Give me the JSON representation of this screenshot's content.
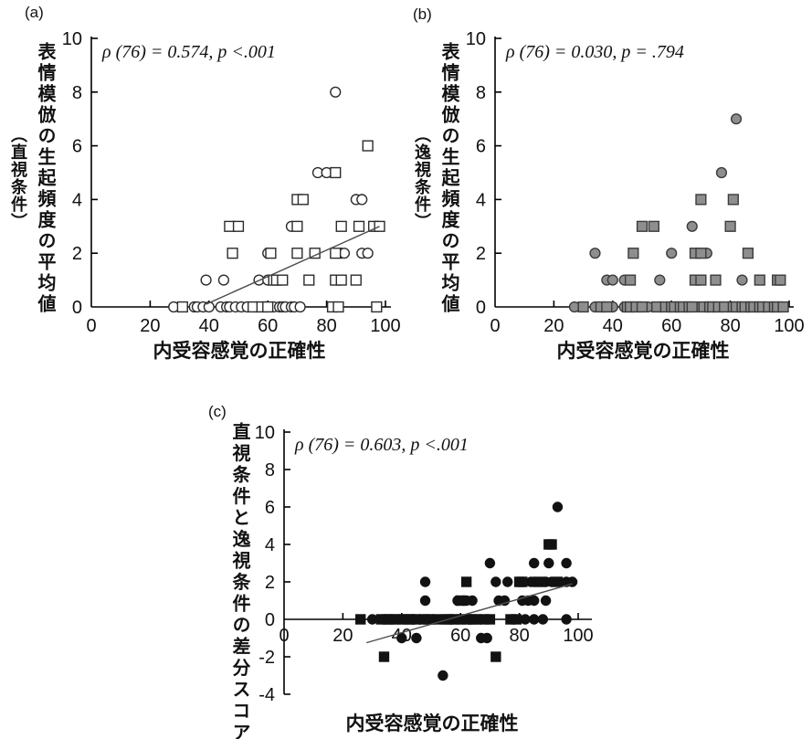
{
  "panels": [
    {
      "id": "a",
      "label": "(a)",
      "y_title": "表情模倣の生起頻度の平均値",
      "y_title_paren": "（直視条件）",
      "x_title": "内受容感覚の正確性",
      "annotation": "ρ (76) = 0.574, p <.001"
    },
    {
      "id": "b",
      "label": "(b)",
      "y_title": "表情模倣の生起頻度の平均値",
      "y_title_paren": "（逸視条件）",
      "x_title": "内受容感覚の正確性",
      "annotation": "ρ (76) = 0.030, p = .794"
    },
    {
      "id": "c",
      "label": "(c)",
      "y_title": "直視条件と逸視条件の差分スコア",
      "y_title_paren": "",
      "x_title": "内受容感覚の正確性",
      "annotation": "ρ (76) = 0.603, p <.001"
    }
  ],
  "chart_data": [
    {
      "type": "scatter",
      "panel": "a",
      "xlabel": "内受容感覚の正確性",
      "ylabel": "表情模倣の生起頻度の平均値（直視条件）",
      "annotation": "ρ (76) = 0.574, p <.001",
      "stats": {
        "rho": 0.574,
        "df": 76,
        "p": "<.001"
      },
      "xlim": [
        0,
        100
      ],
      "ylim": [
        0,
        10
      ],
      "xticks": [
        0,
        20,
        40,
        60,
        80,
        100
      ],
      "yticks": [
        0,
        2,
        4,
        6,
        8,
        10
      ],
      "grid": false,
      "series": [
        {
          "name": "open-circles",
          "marker": "circle",
          "fill": "#ffffff",
          "stroke": "#2b2b2b",
          "size": 10.8,
          "points": [
            [
              83,
              8
            ],
            [
              77,
              5
            ],
            [
              80,
              5
            ],
            [
              90,
              4
            ],
            [
              92,
              4
            ],
            [
              68,
              3
            ],
            [
              60,
              2
            ],
            [
              85,
              2
            ],
            [
              86,
              2
            ],
            [
              92,
              2
            ],
            [
              94,
              2
            ],
            [
              39,
              1
            ],
            [
              45,
              1
            ],
            [
              57,
              1
            ],
            [
              60,
              1
            ],
            [
              28,
              0
            ],
            [
              35,
              0
            ],
            [
              36,
              0
            ],
            [
              38,
              0
            ],
            [
              40,
              0
            ],
            [
              44,
              0
            ],
            [
              46,
              0
            ],
            [
              47,
              0
            ],
            [
              49,
              0
            ],
            [
              51,
              0
            ],
            [
              53,
              0
            ],
            [
              56,
              0
            ],
            [
              62,
              0
            ],
            [
              64,
              0
            ],
            [
              65,
              0
            ],
            [
              66,
              0
            ],
            [
              68,
              0
            ],
            [
              69,
              0
            ],
            [
              71,
              0
            ]
          ]
        },
        {
          "name": "open-squares",
          "marker": "square",
          "fill": "#ffffff",
          "stroke": "#2b2b2b",
          "size": 10.8,
          "points": [
            [
              94,
              6
            ],
            [
              83,
              5
            ],
            [
              70,
              4
            ],
            [
              72,
              4
            ],
            [
              47,
              3
            ],
            [
              50,
              3
            ],
            [
              70,
              3
            ],
            [
              85,
              3
            ],
            [
              91,
              3
            ],
            [
              96,
              3
            ],
            [
              98,
              3
            ],
            [
              48,
              2
            ],
            [
              61,
              2
            ],
            [
              70,
              2
            ],
            [
              76,
              2
            ],
            [
              83,
              2
            ],
            [
              62,
              1
            ],
            [
              63,
              1
            ],
            [
              65,
              1
            ],
            [
              74,
              1
            ],
            [
              83,
              1
            ],
            [
              85,
              1
            ],
            [
              90,
              1
            ],
            [
              31,
              0
            ],
            [
              55,
              0
            ],
            [
              58,
              0
            ],
            [
              60,
              0
            ],
            [
              82,
              0
            ],
            [
              84,
              0
            ],
            [
              97,
              0
            ]
          ]
        }
      ],
      "trendline": {
        "x1": 39,
        "y1": 0.1,
        "x2": 98,
        "y2": 3.0
      }
    },
    {
      "type": "scatter",
      "panel": "b",
      "xlabel": "内受容感覚の正確性",
      "ylabel": "表情模倣の生起頻度の平均値（逸視条件）",
      "annotation": "ρ (76) = 0.030, p = .794",
      "stats": {
        "rho": 0.03,
        "df": 76,
        "p": "= .794"
      },
      "xlim": [
        0,
        100
      ],
      "ylim": [
        0,
        10
      ],
      "xticks": [
        0,
        20,
        40,
        60,
        80,
        100
      ],
      "yticks": [
        0,
        2,
        4,
        6,
        8,
        10
      ],
      "grid": false,
      "series": [
        {
          "name": "gray-circles",
          "marker": "circle",
          "fill": "#8e8e8e",
          "stroke": "#3b3b3b",
          "size": 10.8,
          "points": [
            [
              82,
              7
            ],
            [
              77,
              5
            ],
            [
              67,
              3
            ],
            [
              34,
              2
            ],
            [
              60,
              2
            ],
            [
              72,
              2
            ],
            [
              38,
              1
            ],
            [
              40,
              1
            ],
            [
              44,
              1
            ],
            [
              56,
              1
            ],
            [
              84,
              1
            ],
            [
              27,
              0
            ],
            [
              34,
              0
            ],
            [
              40,
              0
            ],
            [
              44,
              0
            ],
            [
              52,
              0
            ],
            [
              56,
              0
            ],
            [
              62,
              0
            ],
            [
              69,
              0
            ],
            [
              79,
              0
            ],
            [
              86,
              0
            ]
          ]
        },
        {
          "name": "gray-squares",
          "marker": "square",
          "fill": "#8e8e8e",
          "stroke": "#3b3b3b",
          "size": 10.8,
          "points": [
            [
              70,
              4
            ],
            [
              81,
              4
            ],
            [
              50,
              3
            ],
            [
              54,
              3
            ],
            [
              80,
              3
            ],
            [
              47,
              2
            ],
            [
              68,
              2
            ],
            [
              70,
              2
            ],
            [
              86,
              2
            ],
            [
              46,
              1
            ],
            [
              68,
              1
            ],
            [
              70,
              1
            ],
            [
              75,
              1
            ],
            [
              90,
              1
            ],
            [
              96,
              1
            ],
            [
              97,
              1
            ],
            [
              30,
              0
            ],
            [
              36,
              0
            ],
            [
              38,
              0
            ],
            [
              45,
              0
            ],
            [
              46,
              0
            ],
            [
              48,
              0
            ],
            [
              50,
              0
            ],
            [
              55,
              0
            ],
            [
              58,
              0
            ],
            [
              60,
              0
            ],
            [
              61,
              0
            ],
            [
              63,
              0
            ],
            [
              64,
              0
            ],
            [
              66,
              0
            ],
            [
              67,
              0
            ],
            [
              71,
              0
            ],
            [
              73,
              0
            ],
            [
              74,
              0
            ],
            [
              76,
              0
            ],
            [
              78,
              0
            ],
            [
              81,
              0
            ],
            [
              82,
              0
            ],
            [
              84,
              0
            ],
            [
              85,
              0
            ],
            [
              87,
              0
            ],
            [
              88,
              0
            ],
            [
              90,
              0
            ],
            [
              91,
              0
            ],
            [
              93,
              0
            ],
            [
              95,
              0
            ],
            [
              96,
              0
            ],
            [
              98,
              0
            ]
          ]
        }
      ],
      "trendline": null
    },
    {
      "type": "scatter",
      "panel": "c",
      "xlabel": "内受容感覚の正確性",
      "ylabel": "直視条件と逸視条件の差分スコア",
      "annotation": "ρ (76) = 0.603, p <.001",
      "stats": {
        "rho": 0.603,
        "df": 76,
        "p": "<.001"
      },
      "xlim": [
        0,
        100
      ],
      "ylim": [
        -4,
        10
      ],
      "xticks": [
        0,
        20,
        40,
        60,
        80,
        100
      ],
      "yticks": [
        -4,
        -2,
        0,
        2,
        4,
        6,
        8,
        10
      ],
      "grid": false,
      "series": [
        {
          "name": "black-circles",
          "marker": "circle",
          "fill": "#121212",
          "stroke": "#121212",
          "size": 10,
          "points": [
            [
              93,
              6
            ],
            [
              70,
              3
            ],
            [
              85,
              3
            ],
            [
              90,
              3
            ],
            [
              96,
              3
            ],
            [
              48,
              2
            ],
            [
              72,
              2
            ],
            [
              76,
              2
            ],
            [
              84,
              2
            ],
            [
              85,
              2
            ],
            [
              89,
              2
            ],
            [
              91,
              2
            ],
            [
              96,
              2
            ],
            [
              98,
              2
            ],
            [
              48,
              1
            ],
            [
              59,
              1
            ],
            [
              61,
              1
            ],
            [
              62,
              1
            ],
            [
              64,
              1
            ],
            [
              73,
              1
            ],
            [
              75,
              1
            ],
            [
              81,
              1
            ],
            [
              83,
              1
            ],
            [
              85,
              1
            ],
            [
              89,
              1
            ],
            [
              30,
              0
            ],
            [
              44,
              0
            ],
            [
              46,
              0
            ],
            [
              51,
              0
            ],
            [
              57,
              0
            ],
            [
              63,
              0
            ],
            [
              67,
              0
            ],
            [
              82,
              0
            ],
            [
              85,
              0
            ],
            [
              88,
              0
            ],
            [
              96,
              0
            ],
            [
              40,
              -1
            ],
            [
              45,
              -1
            ],
            [
              67,
              -1
            ],
            [
              69,
              -1
            ],
            [
              54,
              -3
            ]
          ]
        },
        {
          "name": "black-squares",
          "marker": "square",
          "fill": "#121212",
          "stroke": "#121212",
          "size": 10,
          "points": [
            [
              90,
              4
            ],
            [
              91,
              4
            ],
            [
              62,
              2
            ],
            [
              80,
              2
            ],
            [
              81,
              2
            ],
            [
              87,
              2
            ],
            [
              93,
              2
            ],
            [
              60,
              1
            ],
            [
              26,
              0
            ],
            [
              33,
              0
            ],
            [
              35,
              0
            ],
            [
              36,
              0
            ],
            [
              38,
              0
            ],
            [
              40,
              0
            ],
            [
              42,
              0
            ],
            [
              43,
              0
            ],
            [
              45,
              0
            ],
            [
              48,
              0
            ],
            [
              49,
              0
            ],
            [
              52,
              0
            ],
            [
              55,
              0
            ],
            [
              56,
              0
            ],
            [
              58,
              0
            ],
            [
              60,
              0
            ],
            [
              62,
              0
            ],
            [
              64,
              0
            ],
            [
              65,
              0
            ],
            [
              68,
              0
            ],
            [
              70,
              0
            ],
            [
              77,
              0
            ],
            [
              79,
              0
            ],
            [
              34,
              -2
            ],
            [
              72,
              -2
            ]
          ]
        }
      ],
      "trendline": {
        "x1": 28,
        "y1": -1.25,
        "x2": 98,
        "y2": 1.9
      }
    }
  ]
}
